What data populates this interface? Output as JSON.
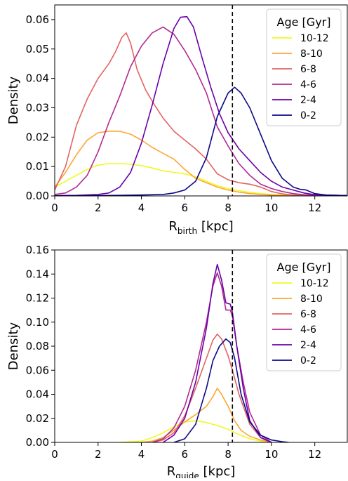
{
  "chart_data": [
    {
      "type": "line",
      "xlabel_main": "R",
      "xlabel_sub": "birth",
      "xlabel_unit": " [kpc]",
      "ylabel": "Density",
      "xlim": [
        0,
        13.5
      ],
      "ylim": [
        0,
        0.065
      ],
      "xticks": [
        0,
        2,
        4,
        6,
        8,
        10,
        12
      ],
      "xtick_labels": [
        "0",
        "2",
        "4",
        "6",
        "8",
        "10",
        "12"
      ],
      "yticks": [
        0,
        0.01,
        0.02,
        0.03,
        0.04,
        0.05,
        0.06
      ],
      "ytick_labels": [
        "0.00",
        "0.01",
        "0.02",
        "0.03",
        "0.04",
        "0.05",
        "0.06"
      ],
      "vline": 8.2,
      "legend": {
        "title": "Age [Gyr]",
        "placement": "top-right"
      },
      "series": [
        {
          "name": "10-12",
          "color": "#f0f921",
          "x": [
            0,
            0.5,
            1,
            1.5,
            2,
            2.5,
            3,
            3.5,
            4,
            4.5,
            5,
            5.5,
            6,
            6.5,
            7,
            7.5,
            8,
            8.5,
            9,
            9.5,
            10,
            10.5,
            11,
            11.5,
            12,
            13.5
          ],
          "y": [
            0.003,
            0.005,
            0.007,
            0.009,
            0.0105,
            0.011,
            0.011,
            0.0108,
            0.0103,
            0.0095,
            0.0085,
            0.008,
            0.0075,
            0.0065,
            0.005,
            0.0035,
            0.0025,
            0.0018,
            0.0012,
            0.0008,
            0.0005,
            0.0003,
            0.0002,
            0.0001,
            5e-05,
            5e-05
          ]
        },
        {
          "name": "8-10",
          "color": "#fca636",
          "x": [
            0,
            0.5,
            1,
            1.5,
            2,
            2.5,
            3,
            3.5,
            4,
            4.5,
            5,
            5.5,
            6,
            6.5,
            7,
            7.5,
            8,
            8.5,
            9,
            9.5,
            10,
            10.5,
            11,
            12,
            13.5
          ],
          "y": [
            0.003,
            0.008,
            0.014,
            0.019,
            0.0215,
            0.022,
            0.022,
            0.021,
            0.019,
            0.0165,
            0.0145,
            0.0125,
            0.009,
            0.006,
            0.0045,
            0.003,
            0.002,
            0.0013,
            0.0008,
            0.0005,
            0.0003,
            0.0002,
            0.0001,
            5e-05,
            5e-05
          ]
        },
        {
          "name": "6-8",
          "color": "#e16462",
          "x": [
            0,
            0.5,
            1,
            1.5,
            2,
            2.5,
            2.8,
            3.1,
            3.3,
            3.5,
            3.8,
            4.2,
            4.6,
            5,
            5.5,
            6,
            6.5,
            7,
            7.5,
            8,
            8.5,
            9,
            9.5,
            10,
            10.5,
            11,
            11.5,
            12,
            13.5
          ],
          "y": [
            0.002,
            0.01,
            0.024,
            0.033,
            0.04,
            0.045,
            0.049,
            0.054,
            0.0555,
            0.052,
            0.043,
            0.036,
            0.031,
            0.0265,
            0.022,
            0.019,
            0.016,
            0.0125,
            0.0075,
            0.0055,
            0.0045,
            0.004,
            0.003,
            0.0015,
            0.0007,
            0.0003,
            0.0002,
            0.0001,
            5e-05
          ]
        },
        {
          "name": "4-6",
          "color": "#b12a90",
          "x": [
            0,
            0.5,
            1,
            1.5,
            2,
            2.5,
            3,
            3.5,
            4,
            4.5,
            5,
            5.5,
            6,
            6.5,
            7,
            7.5,
            8,
            8.5,
            9,
            9.5,
            10,
            10.5,
            11,
            11.5,
            12,
            13.5
          ],
          "y": [
            0.0005,
            0.001,
            0.003,
            0.007,
            0.015,
            0.025,
            0.034,
            0.044,
            0.051,
            0.0555,
            0.0575,
            0.055,
            0.0495,
            0.043,
            0.035,
            0.0235,
            0.017,
            0.011,
            0.007,
            0.004,
            0.0025,
            0.0015,
            0.0008,
            0.0004,
            0.0002,
            0.0001
          ]
        },
        {
          "name": "2-4",
          "color": "#6a00a8",
          "x": [
            0,
            1,
            2,
            2.5,
            3,
            3.5,
            4,
            4.5,
            5,
            5.5,
            5.8,
            6.1,
            6.4,
            6.8,
            7.2,
            7.6,
            8,
            8.5,
            9,
            9.5,
            10,
            10.5,
            11,
            11.5,
            12,
            13.5
          ],
          "y": [
            0.0001,
            0.0002,
            0.0005,
            0.001,
            0.003,
            0.008,
            0.018,
            0.031,
            0.045,
            0.057,
            0.0608,
            0.061,
            0.0575,
            0.047,
            0.037,
            0.028,
            0.0215,
            0.016,
            0.012,
            0.008,
            0.005,
            0.003,
            0.002,
            0.001,
            0.0004,
            0.0001
          ]
        },
        {
          "name": "0-2",
          "color": "#0d0887",
          "x": [
            0,
            2,
            3,
            4,
            5,
            5.5,
            6,
            6.5,
            7,
            7.5,
            8,
            8.3,
            8.6,
            9,
            9.5,
            10,
            10.5,
            11,
            11.3,
            11.6,
            12,
            12.5,
            13.5
          ],
          "y": [
            5e-05,
            0.0001,
            0.0002,
            0.0003,
            0.0005,
            0.001,
            0.002,
            0.005,
            0.013,
            0.027,
            0.035,
            0.037,
            0.035,
            0.03,
            0.021,
            0.012,
            0.006,
            0.003,
            0.0023,
            0.002,
            0.0008,
            0.0003,
            0.0001
          ]
        }
      ]
    },
    {
      "type": "line",
      "xlabel_main": "R",
      "xlabel_sub": "guide",
      "xlabel_unit": " [kpc]",
      "ylabel": "Density",
      "xlim": [
        0,
        13.5
      ],
      "ylim": [
        0,
        0.16
      ],
      "xticks": [
        0,
        2,
        4,
        6,
        8,
        10,
        12
      ],
      "xtick_labels": [
        "0",
        "2",
        "4",
        "6",
        "8",
        "10",
        "12"
      ],
      "yticks": [
        0,
        0.02,
        0.04,
        0.06,
        0.08,
        0.1,
        0.12,
        0.14,
        0.16
      ],
      "ytick_labels": [
        "0.00",
        "0.02",
        "0.04",
        "0.06",
        "0.08",
        "0.10",
        "0.12",
        "0.14",
        "0.16"
      ],
      "vline": 8.2,
      "legend": {
        "title": "Age [Gyr]",
        "placement": "top-right"
      },
      "series": [
        {
          "name": "10-12",
          "color": "#f0f921",
          "x": [
            3,
            4,
            4.5,
            5,
            5.5,
            6,
            6.5,
            7,
            7.5,
            8,
            8.5,
            9,
            9.5,
            10
          ],
          "y": [
            0,
            0.001,
            0.004,
            0.008,
            0.013,
            0.017,
            0.018,
            0.0165,
            0.014,
            0.011,
            0.0065,
            0.003,
            0.001,
            0
          ]
        },
        {
          "name": "8-10",
          "color": "#fca636",
          "x": [
            4,
            4.5,
            5,
            5.5,
            6,
            6.5,
            7,
            7.3,
            7.5,
            7.7,
            8,
            8.3,
            8.6,
            9,
            9.5,
            10
          ],
          "y": [
            0,
            0.001,
            0.004,
            0.01,
            0.017,
            0.023,
            0.03,
            0.038,
            0.045,
            0.04,
            0.03,
            0.018,
            0.01,
            0.005,
            0.002,
            0
          ]
        },
        {
          "name": "6-8",
          "color": "#e16462",
          "x": [
            4.5,
            5,
            5.5,
            6,
            6.5,
            7,
            7.3,
            7.5,
            7.7,
            8,
            8.2,
            8.5,
            9,
            9.5,
            10
          ],
          "y": [
            0,
            0.002,
            0.008,
            0.022,
            0.045,
            0.07,
            0.085,
            0.09,
            0.086,
            0.072,
            0.06,
            0.04,
            0.015,
            0.004,
            0
          ]
        },
        {
          "name": "4-6",
          "color": "#b12a90",
          "x": [
            4.5,
            5,
            5.5,
            6,
            6.5,
            7,
            7.3,
            7.5,
            7.7,
            7.9,
            8.1,
            8.2,
            8.4,
            8.7,
            9,
            9.5,
            10
          ],
          "y": [
            0,
            0.003,
            0.012,
            0.03,
            0.06,
            0.1,
            0.13,
            0.141,
            0.13,
            0.11,
            0.11,
            0.105,
            0.08,
            0.05,
            0.025,
            0.006,
            0
          ]
        },
        {
          "name": "2-4",
          "color": "#6a00a8",
          "x": [
            5,
            5.5,
            6,
            6.5,
            7,
            7.3,
            7.5,
            7.7,
            7.9,
            8.1,
            8.2,
            8.4,
            8.7,
            9,
            9.5,
            10
          ],
          "y": [
            0,
            0.006,
            0.02,
            0.05,
            0.095,
            0.132,
            0.148,
            0.135,
            0.116,
            0.115,
            0.108,
            0.08,
            0.045,
            0.018,
            0.004,
            0
          ]
        },
        {
          "name": "0-2",
          "color": "#0d0887",
          "x": [
            5.5,
            6,
            6.5,
            7,
            7.3,
            7.6,
            7.9,
            8.1,
            8.3,
            8.6,
            9,
            9.5,
            10,
            10.5,
            10.8
          ],
          "y": [
            0,
            0.003,
            0.015,
            0.045,
            0.068,
            0.08,
            0.086,
            0.083,
            0.07,
            0.04,
            0.017,
            0.006,
            0.002,
            0.0005,
            0
          ]
        }
      ]
    }
  ]
}
